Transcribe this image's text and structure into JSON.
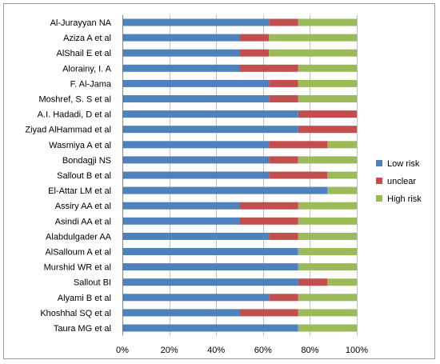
{
  "chart_data": {
    "type": "bar",
    "orientation": "horizontal",
    "stacked": "percent",
    "categories": [
      "Al-Jurayyan NA",
      "Aziza A et al",
      "AlShail E et al",
      "Alorainy, I. A",
      "F. Al-Jama",
      "Moshref, S. S et al",
      "A.I. Hadadi, D et al",
      "Ziyad AlHammad et al",
      "Wasmiya A et al",
      "Bondagji NS",
      "Sallout B et al",
      "El-Attar LM et al",
      "Assiry AA et al",
      "Asindi AA et al",
      "Alabdulgader AA",
      "AlSalloum A et al",
      "Murshid WR et al",
      "Sallout BI",
      "Alyami B et al",
      "Khoshhal SQ et al",
      "Taura MG et al"
    ],
    "series": [
      {
        "name": "Low risk",
        "color": "#4f81bd",
        "values": [
          62.5,
          50,
          50,
          50,
          62.5,
          62.5,
          75,
          75,
          62.5,
          62.5,
          62.5,
          87.5,
          50,
          50,
          62.5,
          75,
          75,
          75,
          62.5,
          50,
          75
        ]
      },
      {
        "name": "unclear",
        "color": "#c0504d",
        "values": [
          12.5,
          12.5,
          12.5,
          25,
          12.5,
          12.5,
          25,
          25,
          25,
          12.5,
          25,
          0,
          25,
          25,
          12.5,
          0,
          0,
          12.5,
          12.5,
          25,
          0
        ]
      },
      {
        "name": "High risk",
        "color": "#9bbb59",
        "values": [
          25,
          37.5,
          37.5,
          25,
          25,
          25,
          0,
          0,
          12.5,
          25,
          12.5,
          12.5,
          25,
          25,
          25,
          25,
          25,
          12.5,
          25,
          25,
          25
        ]
      }
    ],
    "xlim": [
      0,
      100
    ],
    "xticks": [
      "0%",
      "20%",
      "40%",
      "60%",
      "80%",
      "100%"
    ],
    "grid": true,
    "legend_position": "right"
  }
}
